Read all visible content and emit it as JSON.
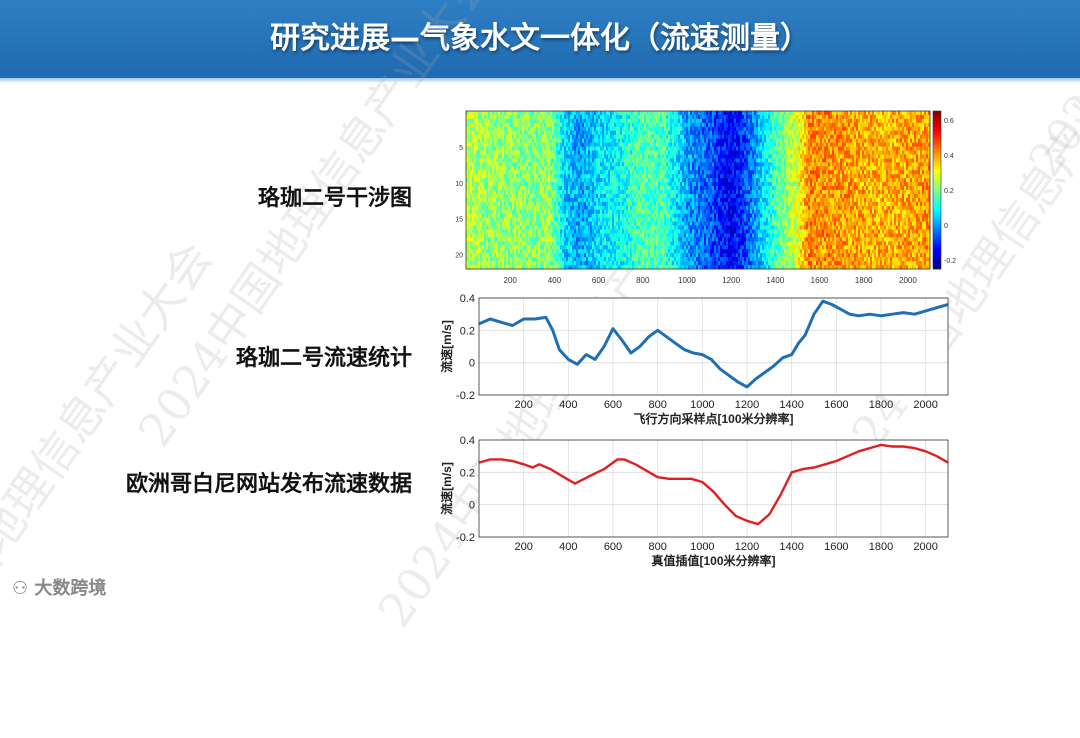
{
  "slide": {
    "title": "研究进展—气象水文一体化（流速测量）",
    "labels": {
      "interferogram": "珞珈二号干涉图",
      "velocity_stats": "珞珈二号流速统计",
      "copernicus": "欧洲哥白尼网站发布流速数据"
    },
    "watermark": "2024中国地理信息产业大会",
    "brand": "大数跨境"
  },
  "chart_data": [
    {
      "type": "heatmap",
      "title": "",
      "xlabel": "",
      "ylabel": "",
      "xticks": [
        "200",
        "400",
        "600",
        "800",
        "1000",
        "1200",
        "1400",
        "1600",
        "1800",
        "2000"
      ],
      "yticks": [
        "5",
        "10",
        "15",
        "20"
      ],
      "xlim": [
        0,
        2100
      ],
      "ylim": [
        22,
        0
      ],
      "colorbar": {
        "ticks": [
          "0.6",
          "0.4",
          "0.2",
          "0",
          "-0.2"
        ],
        "range": [
          -0.25,
          0.65
        ],
        "colormap": "jet"
      },
      "column_profile": {
        "x": [
          0,
          100,
          200,
          300,
          380,
          450,
          520,
          600,
          700,
          800,
          900,
          1000,
          1100,
          1200,
          1300,
          1400,
          1500,
          1550,
          1700,
          1900,
          2100
        ],
        "values": [
          0.25,
          0.22,
          0.22,
          0.2,
          0.22,
          0.05,
          0.0,
          0.06,
          0.1,
          0.16,
          0.15,
          0.0,
          -0.05,
          -0.16,
          -0.02,
          0.15,
          0.28,
          0.42,
          0.4,
          0.38,
          0.4
        ]
      }
    },
    {
      "type": "line",
      "title": "",
      "xlabel": "飞行方向采样点[100米分辨率]",
      "ylabel": "流速[m/s]",
      "xlim": [
        0,
        2100
      ],
      "ylim": [
        -0.2,
        0.4
      ],
      "xticks": [
        200,
        400,
        600,
        800,
        1000,
        1200,
        1400,
        1600,
        1800,
        2000
      ],
      "yticks": [
        -0.2,
        0,
        0.2,
        0.4
      ],
      "grid": true,
      "color": "#1f6fb5",
      "series": [
        {
          "x": [
            0,
            50,
            100,
            150,
            200,
            250,
            300,
            330,
            360,
            400,
            440,
            480,
            520,
            560,
            600,
            640,
            680,
            720,
            760,
            800,
            840,
            880,
            920,
            960,
            1000,
            1040,
            1080,
            1120,
            1160,
            1200,
            1240,
            1280,
            1320,
            1360,
            1400,
            1430,
            1460,
            1500,
            1540,
            1580,
            1620,
            1660,
            1700,
            1750,
            1800,
            1850,
            1900,
            1950,
            2000,
            2050,
            2100
          ],
          "values": [
            0.24,
            0.27,
            0.25,
            0.23,
            0.27,
            0.27,
            0.28,
            0.2,
            0.08,
            0.02,
            -0.01,
            0.05,
            0.02,
            0.1,
            0.21,
            0.14,
            0.06,
            0.1,
            0.16,
            0.2,
            0.16,
            0.12,
            0.08,
            0.06,
            0.05,
            0.02,
            -0.04,
            -0.08,
            -0.12,
            -0.15,
            -0.1,
            -0.06,
            -0.02,
            0.03,
            0.05,
            0.12,
            0.17,
            0.3,
            0.38,
            0.36,
            0.33,
            0.3,
            0.29,
            0.3,
            0.29,
            0.3,
            0.31,
            0.3,
            0.32,
            0.34,
            0.36
          ]
        }
      ]
    },
    {
      "type": "line",
      "title": "",
      "xlabel": "真值插值[100米分辨率]",
      "ylabel": "流速[m/s]",
      "xlim": [
        0,
        2100
      ],
      "ylim": [
        -0.2,
        0.4
      ],
      "xticks": [
        200,
        400,
        600,
        800,
        1000,
        1200,
        1400,
        1600,
        1800,
        2000
      ],
      "yticks": [
        -0.2,
        0,
        0.2,
        0.4
      ],
      "grid": true,
      "color": "#e02020",
      "series": [
        {
          "x": [
            0,
            50,
            100,
            150,
            200,
            240,
            270,
            320,
            380,
            430,
            500,
            560,
            620,
            650,
            700,
            750,
            800,
            850,
            900,
            950,
            1000,
            1050,
            1100,
            1150,
            1200,
            1250,
            1300,
            1350,
            1400,
            1450,
            1500,
            1550,
            1600,
            1650,
            1700,
            1750,
            1800,
            1850,
            1900,
            1950,
            2000,
            2050,
            2100
          ],
          "values": [
            0.26,
            0.28,
            0.28,
            0.27,
            0.25,
            0.23,
            0.25,
            0.22,
            0.17,
            0.13,
            0.18,
            0.22,
            0.28,
            0.28,
            0.25,
            0.21,
            0.17,
            0.16,
            0.16,
            0.16,
            0.14,
            0.08,
            0.0,
            -0.07,
            -0.1,
            -0.12,
            -0.06,
            0.06,
            0.2,
            0.22,
            0.23,
            0.25,
            0.27,
            0.3,
            0.33,
            0.35,
            0.37,
            0.36,
            0.36,
            0.35,
            0.33,
            0.3,
            0.26
          ]
        }
      ]
    }
  ]
}
